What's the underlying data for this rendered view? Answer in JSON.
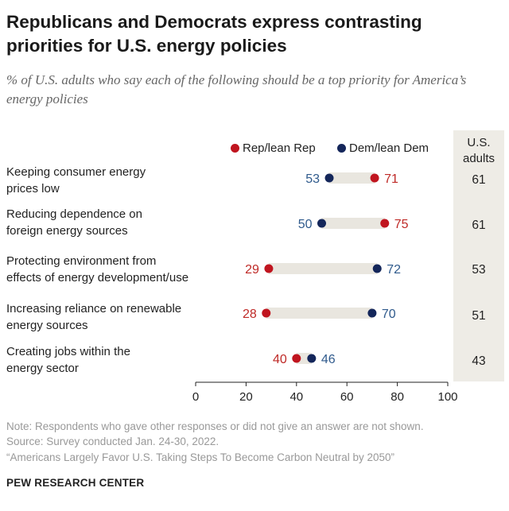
{
  "title": "Republicans and Democrats express contrasting priorities for U.S. energy policies",
  "subtitle": "% of U.S. adults who say each of the following should be a top priority for America’s energy policies",
  "us_adults_header": "U.S. adults",
  "notes": {
    "note": "Note: Respondents who gave other responses or did not give an answer are not shown.",
    "source": "Source: Survey conducted Jan. 24-30, 2022.",
    "report": "“Americans Largely Favor U.S. Taking Steps To Become Carbon Neutral by 2050”"
  },
  "footer": "PEW RESEARCH CENTER",
  "colors": {
    "rep": "#c0151f",
    "dem": "#14265a",
    "rep_text": "#bf2a27",
    "dem_text": "#2f5a8c",
    "connector": "#e9e6df"
  },
  "chart_data": {
    "type": "scatter",
    "subtype": "dot-plot",
    "legend_position": "top",
    "categories": [
      "Keeping consumer energy prices low",
      "Reducing dependence on foreign energy sources",
      "Protecting environment from effects of energy development/use",
      "Increasing reliance on renewable energy sources",
      "Creating jobs within the energy sector"
    ],
    "category_lines": [
      [
        "Keeping consumer energy",
        "prices low"
      ],
      [
        "Reducing dependence on",
        "foreign energy sources"
      ],
      [
        "Protecting environment from",
        "effects of energy development/use"
      ],
      [
        "Increasing reliance on renewable",
        "energy sources"
      ],
      [
        "Creating jobs within the",
        "energy sector"
      ]
    ],
    "series": [
      {
        "name": "Rep/lean Rep",
        "values": [
          71,
          75,
          29,
          28,
          40
        ]
      },
      {
        "name": "Dem/lean Dem",
        "values": [
          53,
          50,
          72,
          70,
          46
        ]
      }
    ],
    "us_adults": [
      61,
      61,
      53,
      51,
      43
    ],
    "xlim": [
      0,
      100
    ],
    "xticks": [
      0,
      20,
      40,
      60,
      80,
      100
    ],
    "grid": false
  }
}
